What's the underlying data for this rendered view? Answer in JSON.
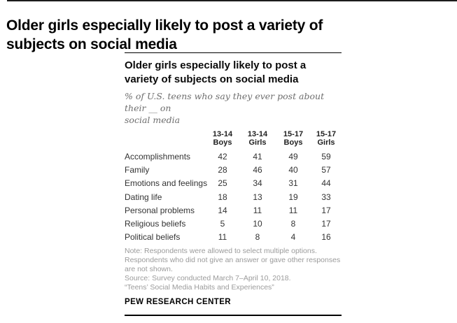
{
  "page": {
    "headline_line1": "Older girls especially likely to post a variety of",
    "headline_line2": "subjects on social media"
  },
  "card": {
    "title_line1": "Older girls especially likely to post a",
    "title_line2": "variety of subjects on social media",
    "subtitle_line1": "% of U.S. teens who say they ever post about their __ on",
    "subtitle_line2": "social media",
    "table": {
      "columns": [
        {
          "age": "13-14",
          "group": "Boys"
        },
        {
          "age": "13-14",
          "group": "Girls"
        },
        {
          "age": "15-17",
          "group": "Boys"
        },
        {
          "age": "15-17",
          "group": "Girls"
        }
      ]
    },
    "note_line1": "Note: Respondents were allowed to select multiple options.",
    "note_line2": "Respondents who did not give an answer or gave other responses",
    "note_line3": "are not shown.",
    "source_line1": "Source: Survey conducted March 7–April 10, 2018.",
    "source_line2": "“Teens’ Social Media Habits and Experiences”",
    "branding": "PEW RESEARCH CENTER"
  },
  "colors": {
    "text_dark": "#333333",
    "text_gray": "#9b9b9b",
    "rule_black": "#000000",
    "background": "#ffffff"
  },
  "chart_data": {
    "type": "table",
    "title": "Older girls especially likely to post a variety of subjects on social media",
    "subtitle": "% of U.S. teens who say they ever post about their __ on social media",
    "categories": [
      "Accomplishments",
      "Family",
      "Emotions and feelings",
      "Dating life",
      "Personal problems",
      "Religious beliefs",
      "Political beliefs"
    ],
    "series": [
      {
        "name": "13-14 Boys",
        "values": [
          42,
          28,
          25,
          18,
          14,
          5,
          11
        ]
      },
      {
        "name": "13-14 Girls",
        "values": [
          41,
          46,
          34,
          13,
          11,
          10,
          8
        ]
      },
      {
        "name": "15-17 Boys",
        "values": [
          49,
          40,
          31,
          19,
          11,
          8,
          4
        ]
      },
      {
        "name": "15-17 Girls",
        "values": [
          59,
          57,
          44,
          33,
          17,
          17,
          16
        ]
      }
    ],
    "note": "Respondents were allowed to select multiple options. Respondents who did not give an answer or gave other responses are not shown.",
    "source": "Survey conducted March 7–April 10, 2018. “Teens’ Social Media Habits and Experiences”",
    "branding": "PEW RESEARCH CENTER"
  }
}
